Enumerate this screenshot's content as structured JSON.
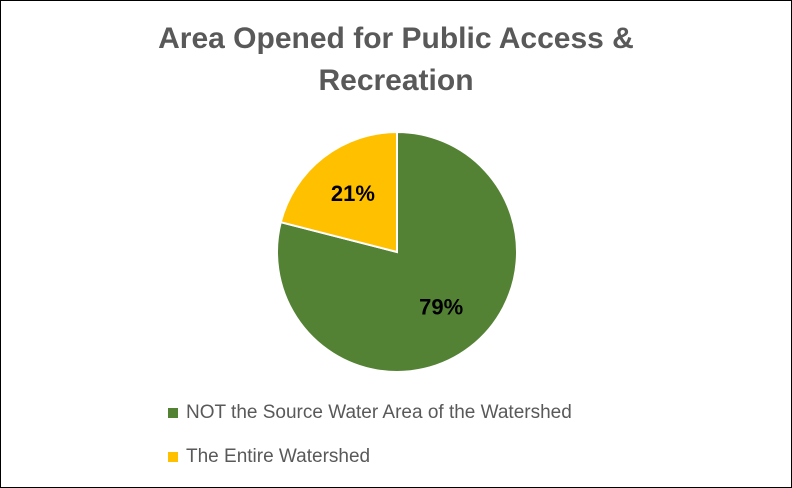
{
  "chart_data": {
    "type": "pie",
    "title": "Area Opened for Public Access & Recreation",
    "title_lines": [
      "Area Opened for Public Access &",
      "Recreation"
    ],
    "slices": [
      {
        "label": "NOT the Source Water Area of the Watershed",
        "value": 79,
        "display": "79%",
        "color": "#548235"
      },
      {
        "label": "The Entire Watershed",
        "value": 21,
        "display": "21%",
        "color": "#FFC000"
      }
    ],
    "legend_position": "bottom"
  }
}
